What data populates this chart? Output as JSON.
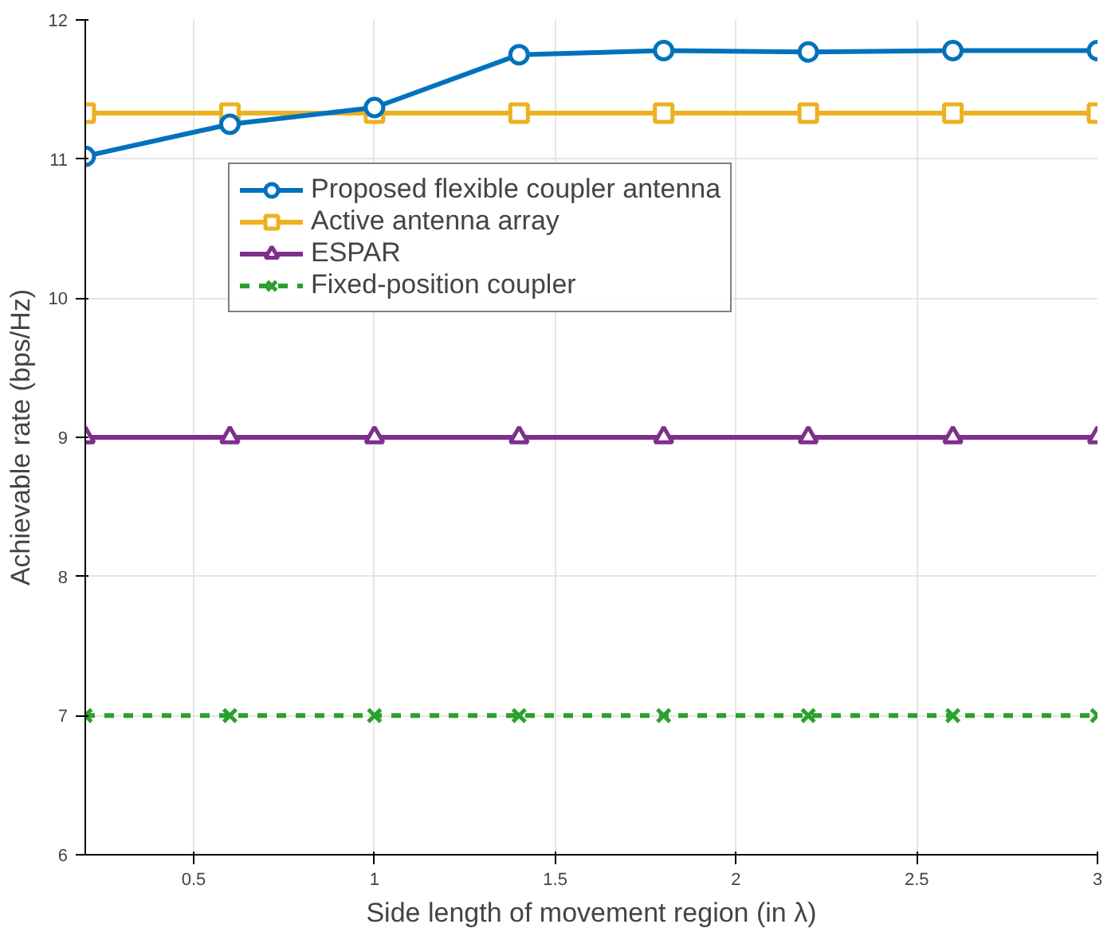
{
  "chart_data": {
    "type": "line",
    "xlabel": "Side length of movement region (in λ)",
    "ylabel": "Achievable rate (bps/Hz)",
    "x": [
      0.2,
      0.6,
      1.0,
      1.4,
      1.8,
      2.2,
      2.6,
      3.0
    ],
    "series": [
      {
        "name": "Proposed flexible coupler antenna",
        "color": "#0072bd",
        "marker": "circle",
        "line_style": "solid",
        "values": [
          11.02,
          11.25,
          11.37,
          11.75,
          11.78,
          11.77,
          11.78,
          11.78
        ]
      },
      {
        "name": "Active antenna array",
        "color": "#edb120",
        "marker": "square",
        "line_style": "solid",
        "values": [
          11.33,
          11.33,
          11.33,
          11.33,
          11.33,
          11.33,
          11.33,
          11.33
        ]
      },
      {
        "name": "ESPAR",
        "color": "#7e2f8e",
        "marker": "triangle",
        "line_style": "solid",
        "values": [
          9,
          9,
          9,
          9,
          9,
          9,
          9,
          9
        ]
      },
      {
        "name": "Fixed-position coupler",
        "color": "#2ca02c",
        "marker": "cross",
        "line_style": "dashed",
        "values": [
          7,
          7,
          7,
          7,
          7,
          7,
          7,
          7
        ]
      }
    ],
    "xlim": [
      0.2,
      3
    ],
    "xticks": [
      0.5,
      1,
      1.5,
      2,
      2.5,
      3
    ],
    "ylim": [
      6,
      12
    ],
    "yticks": [
      6,
      7,
      8,
      9,
      10,
      11,
      12
    ],
    "grid": true,
    "legend": "top left"
  }
}
